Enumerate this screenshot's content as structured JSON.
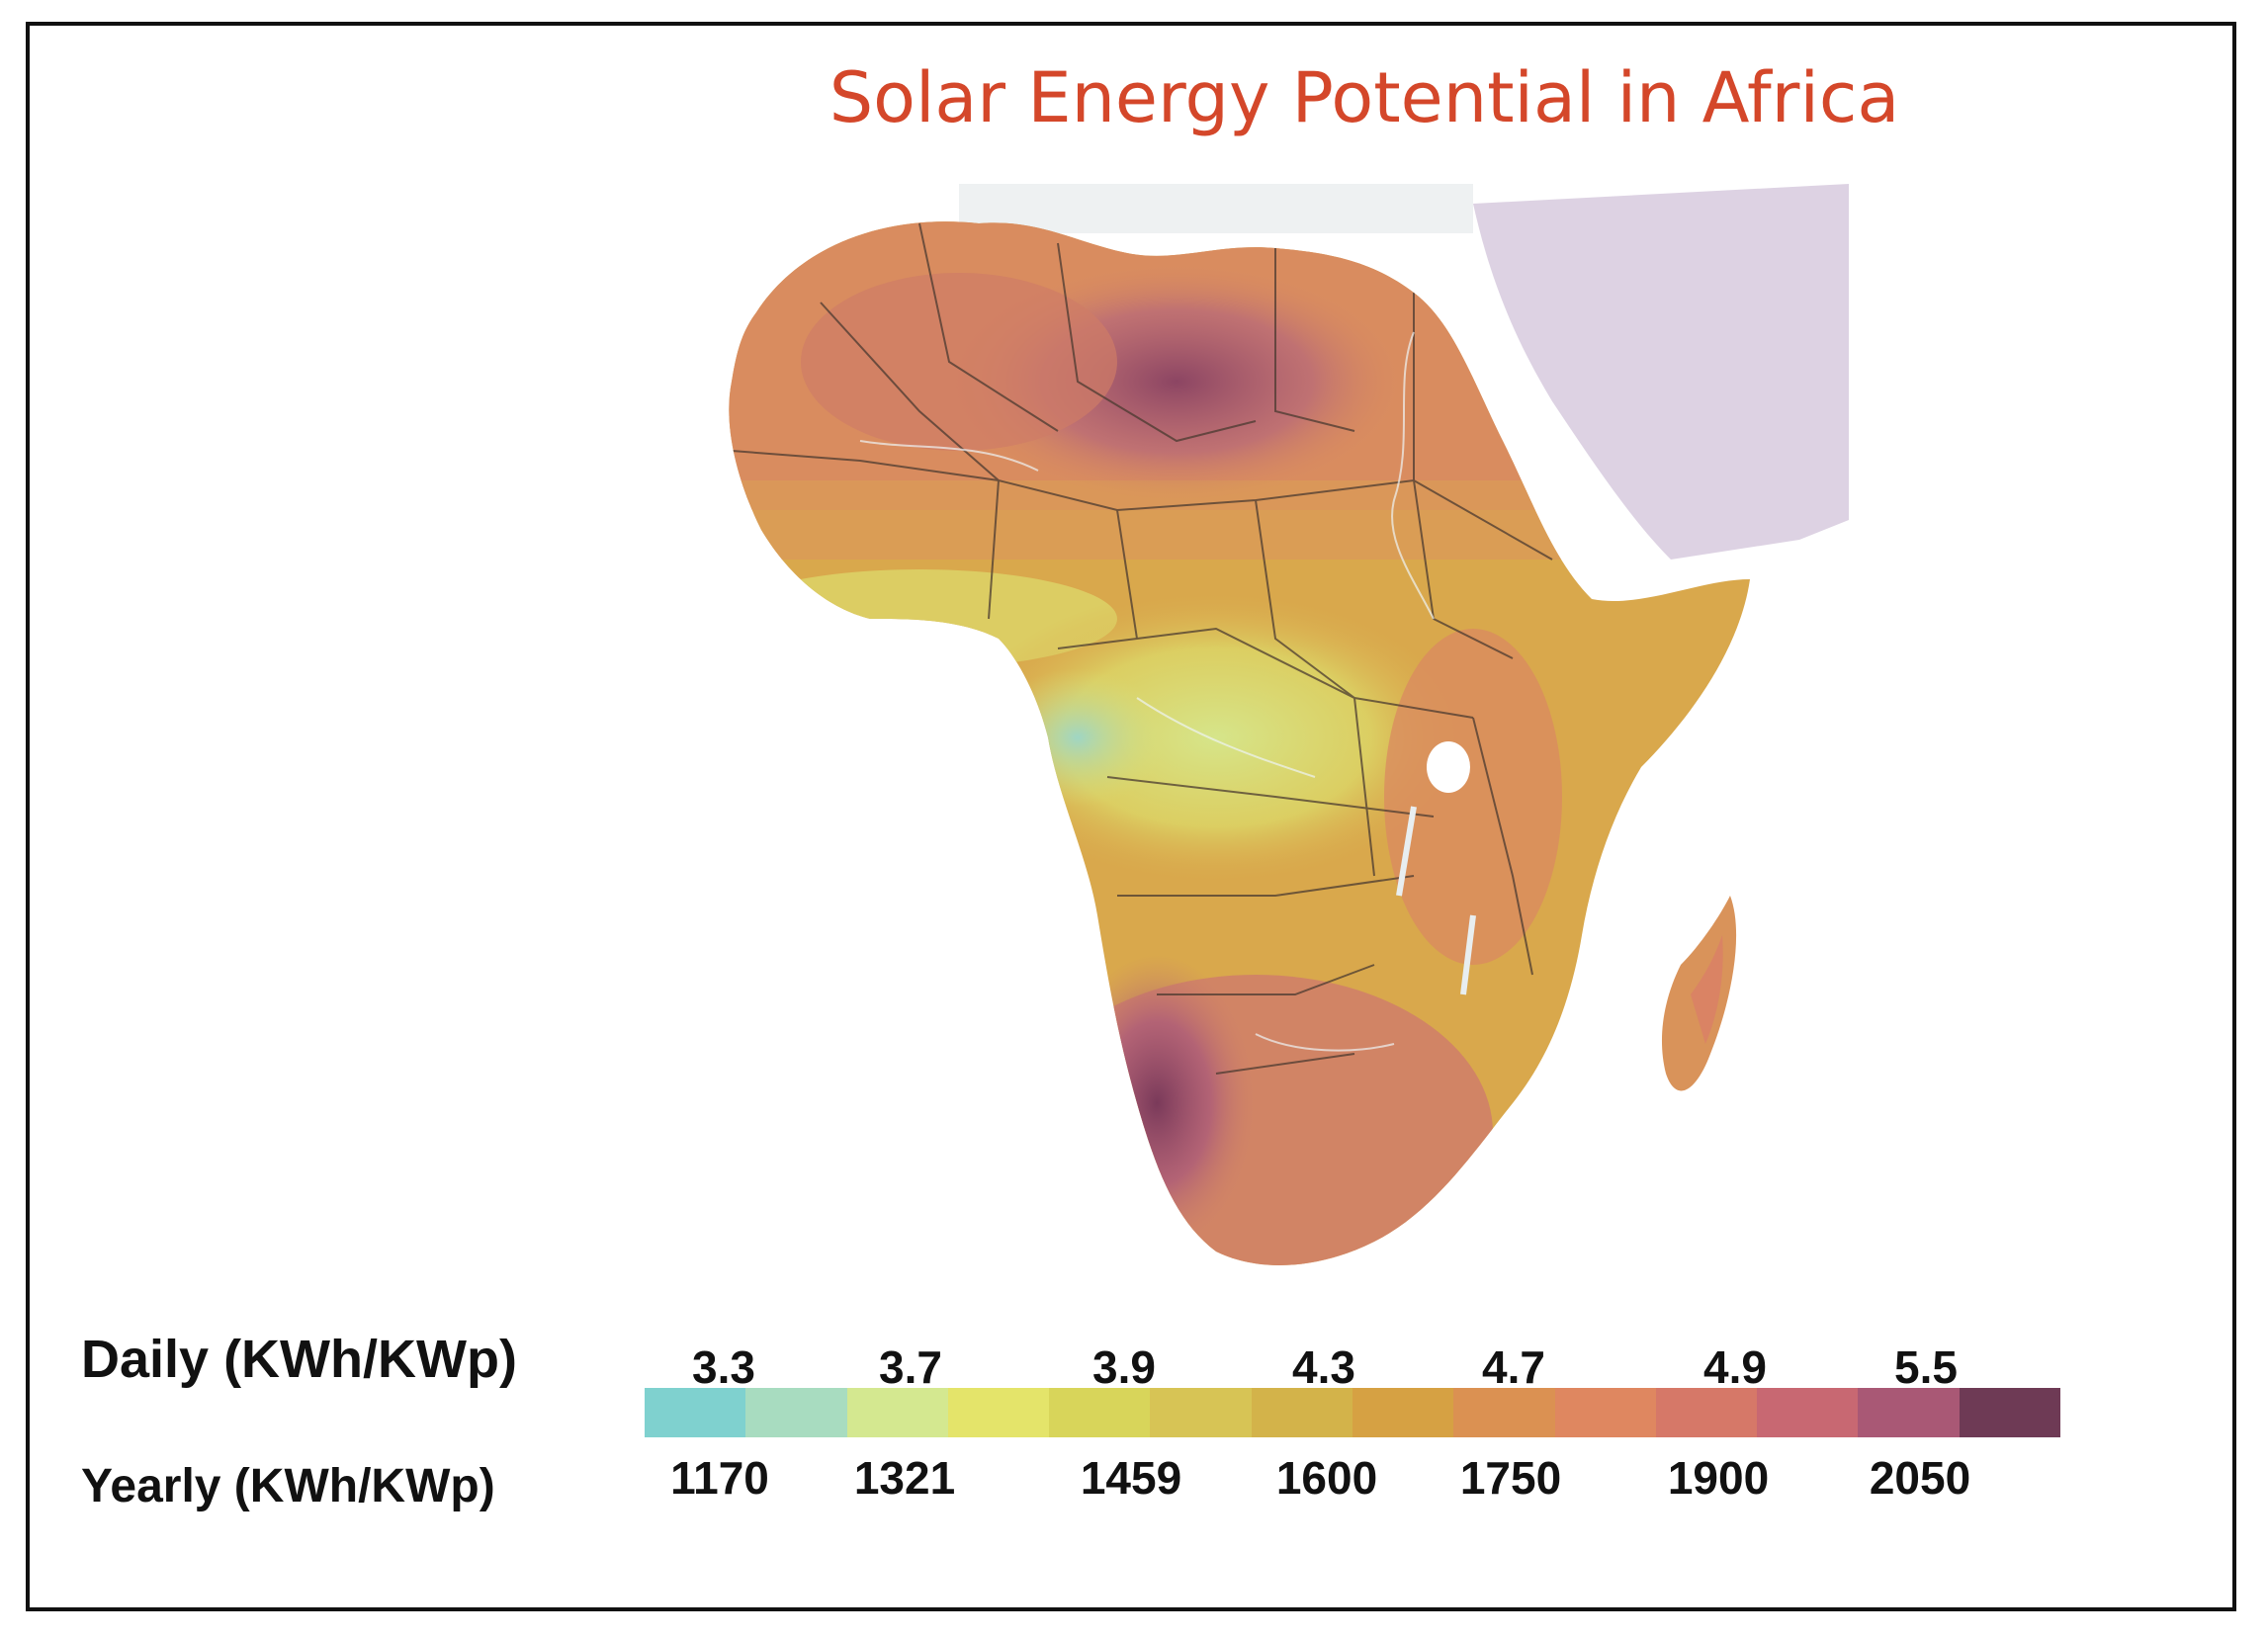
{
  "title": "Solar Energy Potential in Africa",
  "title_color": "#d4472a",
  "legend": {
    "daily_label": "Daily (KWh/KWp)",
    "yearly_label": "Yearly (KWh/KWp)",
    "daily_ticks": [
      "3.3",
      "3.7",
      "3.9",
      "4.3",
      "4.7",
      "4.9",
      "5.5"
    ],
    "yearly_ticks": [
      "1170",
      "1321",
      "1459",
      "1600",
      "1750",
      "1900",
      "2050"
    ],
    "scale_colors": [
      "#7fd1cf",
      "#a8dcc0",
      "#d4e890",
      "#e4e46a",
      "#d8d55a",
      "#d7c455",
      "#d3b34a",
      "#d6a143",
      "#db9152",
      "#df8760",
      "#d67868",
      "#c86872",
      "#a95875",
      "#6e3a55"
    ]
  },
  "map_colors": {
    "land_high": "#d88a62",
    "land_peak": "#9b4f6a",
    "land_mid": "#d9a84c",
    "land_low": "#d8e07a",
    "land_lowest": "#a8dac0",
    "arabia": "#d9cde0",
    "border": "#4a3a30"
  }
}
